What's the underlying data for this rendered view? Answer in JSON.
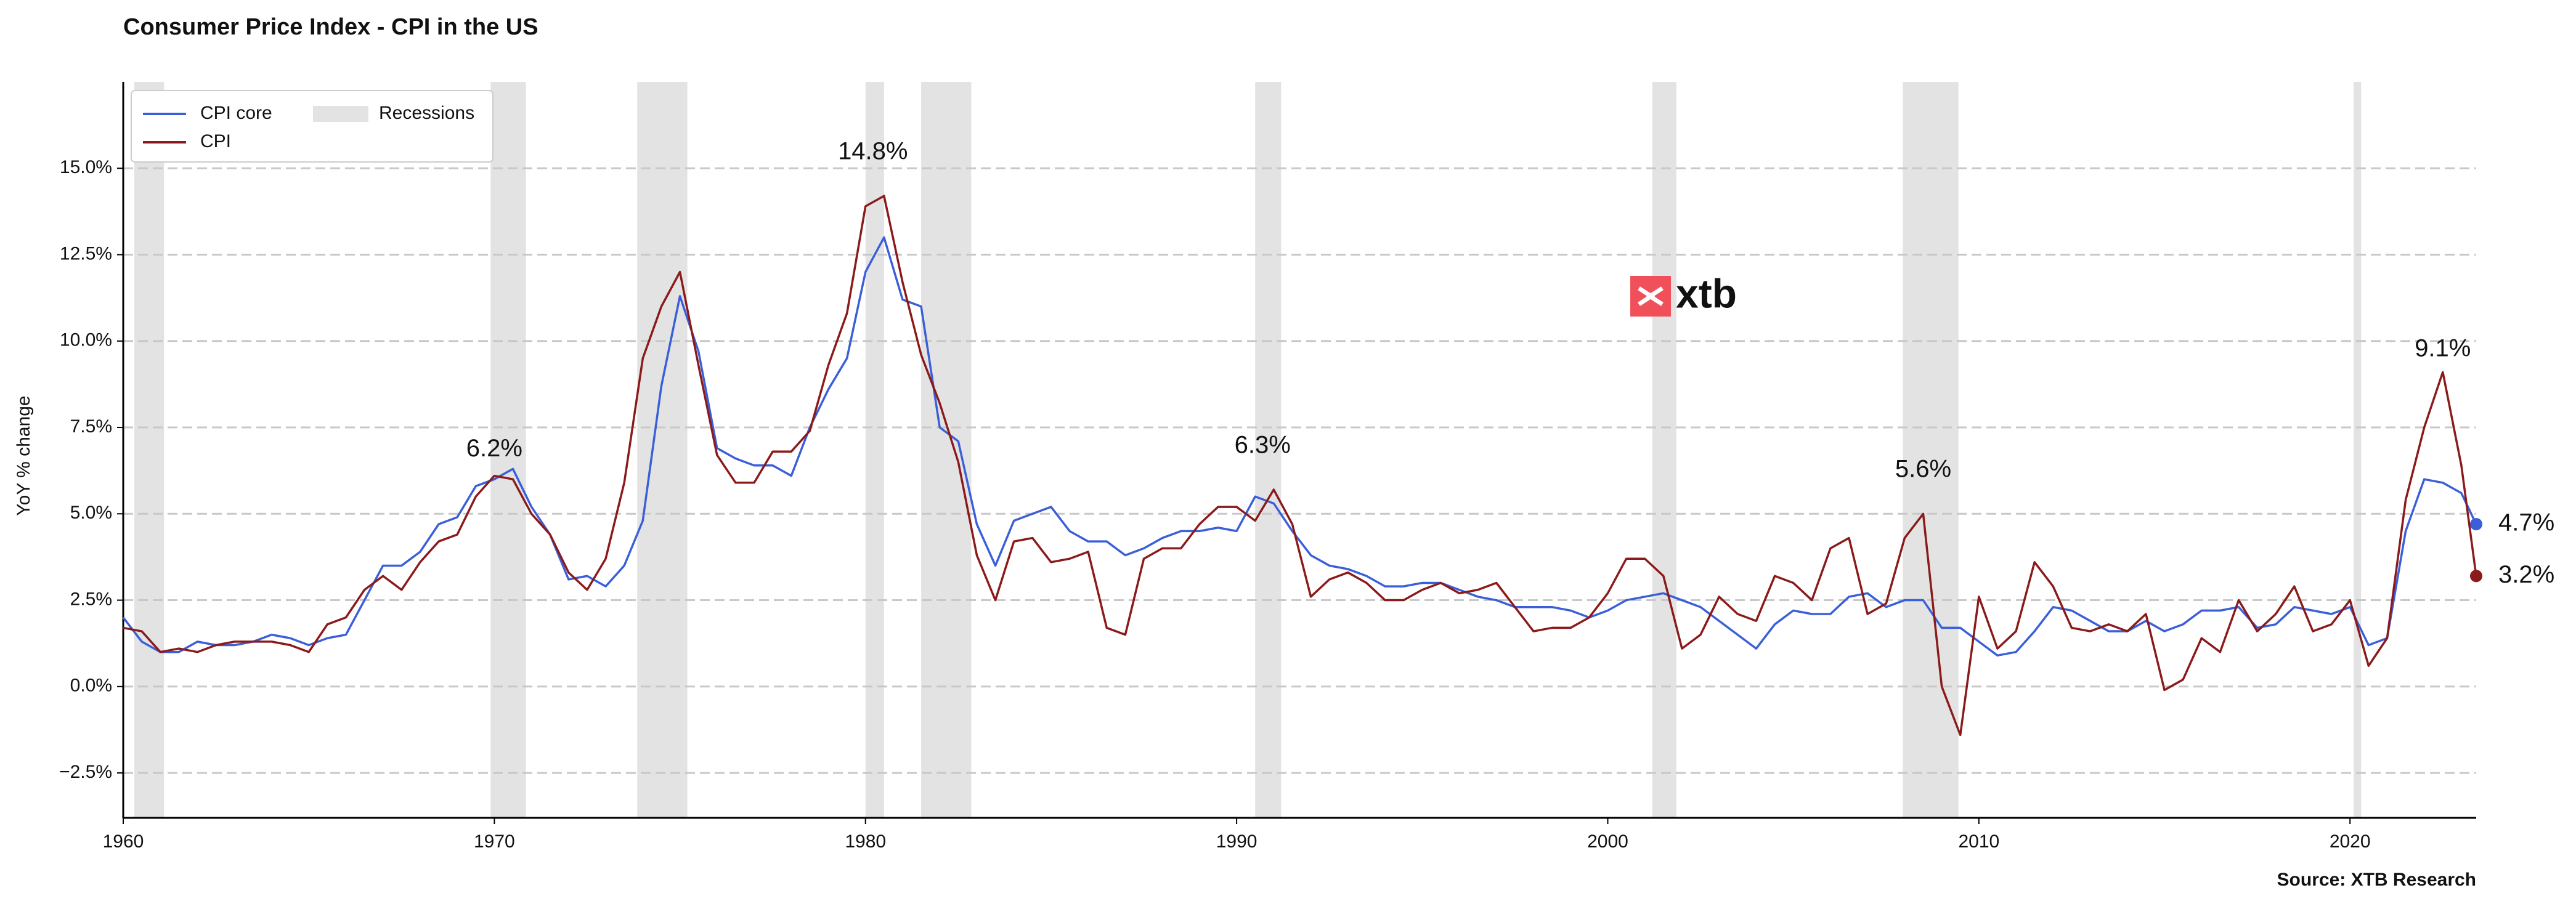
{
  "chart_data": {
    "type": "line",
    "title": "Consumer Price Index - CPI in the US",
    "ylabel": "YoY % change",
    "source": "Source: XTB Research",
    "logo": "xtb",
    "xlim": [
      1960,
      2023.4
    ],
    "xticks": [
      1960,
      1970,
      1980,
      1990,
      2000,
      2010,
      2020
    ],
    "ylim": [
      -3.8,
      17.5
    ],
    "yticks": [
      {
        "value": -2.5,
        "label": "−2.5%"
      },
      {
        "value": 0,
        "label": "0.0%"
      },
      {
        "value": 2.5,
        "label": "2.5%"
      },
      {
        "value": 5,
        "label": "5.0%"
      },
      {
        "value": 7.5,
        "label": "7.5%"
      },
      {
        "value": 10,
        "label": "10.0%"
      },
      {
        "value": 12.5,
        "label": "12.5%"
      },
      {
        "value": 15,
        "label": "15.0%"
      }
    ],
    "grid": true,
    "legend": "upper left",
    "recession_label": "Recessions",
    "recession_color": "#e3e3e3",
    "recessions": [
      [
        1960.3,
        1961.1
      ],
      [
        1969.9,
        1970.85
      ],
      [
        1973.85,
        1975.2
      ],
      [
        1980.0,
        1980.5
      ],
      [
        1981.5,
        1982.85
      ],
      [
        1990.5,
        1991.2
      ],
      [
        2001.2,
        2001.85
      ],
      [
        2007.95,
        2009.45
      ],
      [
        2020.1,
        2020.3
      ]
    ],
    "x": [
      1960,
      1960.5,
      1961,
      1961.5,
      1962,
      1962.5,
      1963,
      1963.5,
      1964,
      1964.5,
      1965,
      1965.5,
      1966,
      1966.5,
      1967,
      1967.5,
      1968,
      1968.5,
      1969,
      1969.5,
      1970,
      1970.5,
      1971,
      1971.5,
      1972,
      1972.5,
      1973,
      1973.5,
      1974,
      1974.5,
      1975,
      1975.5,
      1976,
      1976.5,
      1977,
      1977.5,
      1978,
      1978.5,
      1979,
      1979.5,
      1980,
      1980.5,
      1981,
      1981.5,
      1982,
      1982.5,
      1983,
      1983.5,
      1984,
      1984.5,
      1985,
      1985.5,
      1986,
      1986.5,
      1987,
      1987.5,
      1988,
      1988.5,
      1989,
      1989.5,
      1990,
      1990.5,
      1991,
      1991.5,
      1992,
      1992.5,
      1993,
      1993.5,
      1994,
      1994.5,
      1995,
      1995.5,
      1996,
      1996.5,
      1997,
      1997.5,
      1998,
      1998.5,
      1999,
      1999.5,
      2000,
      2000.5,
      2001,
      2001.5,
      2002,
      2002.5,
      2003,
      2003.5,
      2004,
      2004.5,
      2005,
      2005.5,
      2006,
      2006.5,
      2007,
      2007.5,
      2008,
      2008.5,
      2009,
      2009.5,
      2010,
      2010.5,
      2011,
      2011.5,
      2012,
      2012.5,
      2013,
      2013.5,
      2014,
      2014.5,
      2015,
      2015.5,
      2016,
      2016.5,
      2017,
      2017.5,
      2018,
      2018.5,
      2019,
      2019.5,
      2020,
      2020.5,
      2021,
      2021.5,
      2022,
      2022.5,
      2023,
      2023.4
    ],
    "series": [
      {
        "name": "CPI core",
        "color": "#3a5fd9",
        "end_label": "4.7%",
        "values": [
          2.0,
          1.3,
          1.0,
          1.0,
          1.3,
          1.2,
          1.2,
          1.3,
          1.5,
          1.4,
          1.2,
          1.4,
          1.5,
          2.5,
          3.5,
          3.5,
          3.9,
          4.7,
          4.9,
          5.8,
          6.0,
          6.3,
          5.2,
          4.4,
          3.1,
          3.2,
          2.9,
          3.5,
          4.8,
          8.7,
          11.3,
          9.7,
          6.9,
          6.6,
          6.4,
          6.4,
          6.1,
          7.5,
          8.6,
          9.5,
          12.0,
          13.0,
          11.2,
          11.0,
          7.5,
          7.1,
          4.7,
          3.5,
          4.8,
          5.0,
          5.2,
          4.5,
          4.2,
          4.2,
          3.8,
          4.0,
          4.3,
          4.5,
          4.5,
          4.6,
          4.5,
          5.5,
          5.3,
          4.5,
          3.8,
          3.5,
          3.4,
          3.2,
          2.9,
          2.9,
          3.0,
          3.0,
          2.8,
          2.6,
          2.5,
          2.3,
          2.3,
          2.3,
          2.2,
          2.0,
          2.2,
          2.5,
          2.6,
          2.7,
          2.5,
          2.3,
          1.9,
          1.5,
          1.1,
          1.8,
          2.2,
          2.1,
          2.1,
          2.6,
          2.7,
          2.3,
          2.5,
          2.5,
          1.7,
          1.7,
          1.3,
          0.9,
          1.0,
          1.6,
          2.3,
          2.2,
          1.9,
          1.6,
          1.6,
          1.9,
          1.6,
          1.8,
          2.2,
          2.2,
          2.3,
          1.7,
          1.8,
          2.3,
          2.2,
          2.1,
          2.3,
          1.2,
          1.4,
          4.5,
          6.0,
          5.9,
          5.6,
          4.7
        ]
      },
      {
        "name": "CPI",
        "color": "#8b1a1a",
        "end_label": "3.2%",
        "values": [
          1.7,
          1.6,
          1.0,
          1.1,
          1.0,
          1.2,
          1.3,
          1.3,
          1.3,
          1.2,
          1.0,
          1.8,
          2.0,
          2.8,
          3.2,
          2.8,
          3.6,
          4.2,
          4.4,
          5.5,
          6.1,
          6.0,
          5.0,
          4.4,
          3.3,
          2.8,
          3.7,
          5.9,
          9.5,
          11.0,
          12.0,
          9.3,
          6.7,
          5.9,
          5.9,
          6.8,
          6.8,
          7.4,
          9.3,
          10.8,
          13.9,
          14.2,
          11.7,
          9.6,
          8.2,
          6.5,
          3.8,
          2.5,
          4.2,
          4.3,
          3.6,
          3.7,
          3.9,
          1.7,
          1.5,
          3.7,
          4.0,
          4.0,
          4.7,
          5.2,
          5.2,
          4.8,
          5.7,
          4.7,
          2.6,
          3.1,
          3.3,
          3.0,
          2.5,
          2.5,
          2.8,
          3.0,
          2.7,
          2.8,
          3.0,
          2.3,
          1.6,
          1.7,
          1.7,
          2.0,
          2.7,
          3.7,
          3.7,
          3.2,
          1.1,
          1.5,
          2.6,
          2.1,
          1.9,
          3.2,
          3.0,
          2.5,
          4.0,
          4.3,
          2.1,
          2.4,
          4.3,
          5.0,
          0.0,
          -1.4,
          2.6,
          1.1,
          1.6,
          3.6,
          2.9,
          1.7,
          1.6,
          1.8,
          1.6,
          2.1,
          -0.1,
          0.2,
          1.4,
          1.0,
          2.5,
          1.6,
          2.1,
          2.9,
          1.6,
          1.8,
          2.5,
          0.6,
          1.4,
          5.4,
          7.5,
          9.1,
          6.4,
          3.2
        ]
      }
    ],
    "annotations": [
      {
        "text": "6.2%",
        "x": 1970.0,
        "y": 6.2
      },
      {
        "text": "14.8%",
        "x": 1980.2,
        "y": 14.8
      },
      {
        "text": "6.3%",
        "x": 1990.7,
        "y": 6.3
      },
      {
        "text": "5.6%",
        "x": 2008.5,
        "y": 5.6
      },
      {
        "text": "9.1%",
        "x": 2022.5,
        "y": 9.1
      }
    ]
  }
}
